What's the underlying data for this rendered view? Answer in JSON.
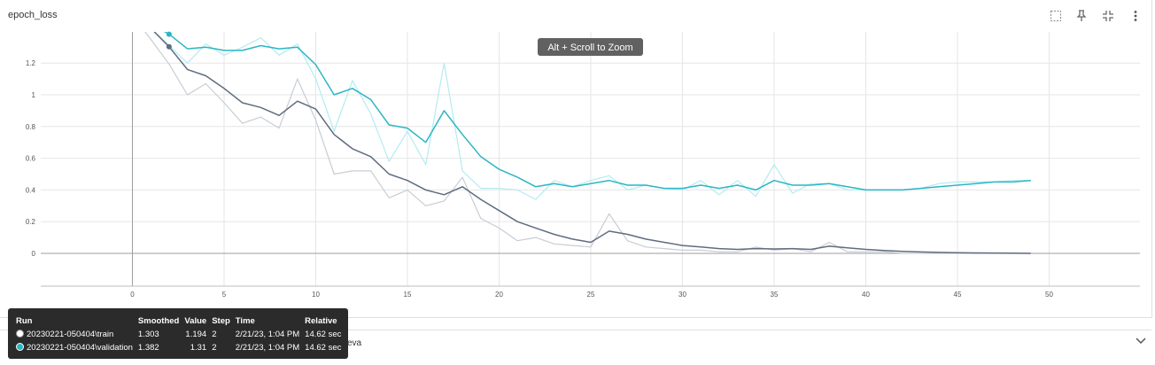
{
  "title": "epoch_loss",
  "toolbar": {
    "fullscreen_icon": "fullscreen-icon",
    "pin_icon": "pin-icon",
    "fit_icon": "fit-domain-icon",
    "more_icon": "more-vert-icon"
  },
  "zoom_hint": "Alt + Scroll to Zoom",
  "colors": {
    "train": "#5f6d80",
    "train_raw": "#c7cdd4",
    "validation": "#2bb6c4",
    "validation_raw": "#b3ebf1"
  },
  "chart_data": {
    "type": "line",
    "xlim": [
      -5,
      55
    ],
    "ylim": [
      -0.2,
      1.38
    ],
    "xticks": [
      0,
      5,
      10,
      15,
      20,
      25,
      30,
      35,
      40,
      45,
      50
    ],
    "yticks": [
      0,
      0.2,
      0.4,
      0.6,
      0.8,
      1,
      1.2
    ],
    "ytick_labels": [
      "0",
      "0.2",
      "0.4",
      "0.6",
      "0.8",
      "1",
      "1.2"
    ],
    "grid": true,
    "series": [
      {
        "name": "20230221-050404\\train (raw)",
        "x": [
          0,
          1,
          2,
          3,
          4,
          5,
          6,
          7,
          8,
          9,
          10,
          11,
          12,
          13,
          14,
          15,
          16,
          17,
          18,
          19,
          20,
          21,
          22,
          23,
          24,
          25,
          26,
          27,
          28,
          29,
          30,
          31,
          32,
          33,
          34,
          35,
          36,
          37,
          38,
          39,
          40,
          41,
          42,
          43,
          44,
          45,
          46,
          47,
          48,
          49
        ],
        "values": [
          1.5,
          1.35,
          1.194,
          1.0,
          1.07,
          0.95,
          0.82,
          0.86,
          0.79,
          1.1,
          0.84,
          0.5,
          0.52,
          0.52,
          0.35,
          0.4,
          0.3,
          0.33,
          0.48,
          0.22,
          0.16,
          0.08,
          0.1,
          0.06,
          0.05,
          0.04,
          0.25,
          0.08,
          0.04,
          0.03,
          0.02,
          0.02,
          0.01,
          0.01,
          0.04,
          0.02,
          0.03,
          0.01,
          0.07,
          0.01,
          0.01,
          0.01,
          0.0,
          0.0,
          0.0,
          0.0,
          0.0,
          0.0,
          0.0,
          0.0
        ]
      },
      {
        "name": "20230221-050404\\train",
        "x": [
          0,
          1,
          2,
          3,
          4,
          5,
          6,
          7,
          8,
          9,
          10,
          11,
          12,
          13,
          14,
          15,
          16,
          17,
          18,
          19,
          20,
          21,
          22,
          23,
          24,
          25,
          26,
          27,
          28,
          29,
          30,
          31,
          32,
          33,
          34,
          35,
          36,
          37,
          38,
          39,
          40,
          41,
          42,
          43,
          44,
          45,
          46,
          47,
          48,
          49
        ],
        "values": [
          1.55,
          1.42,
          1.303,
          1.16,
          1.12,
          1.04,
          0.95,
          0.92,
          0.87,
          0.96,
          0.91,
          0.75,
          0.66,
          0.61,
          0.5,
          0.46,
          0.4,
          0.37,
          0.42,
          0.34,
          0.27,
          0.2,
          0.16,
          0.12,
          0.09,
          0.07,
          0.14,
          0.12,
          0.09,
          0.07,
          0.05,
          0.04,
          0.03,
          0.025,
          0.03,
          0.028,
          0.03,
          0.025,
          0.045,
          0.035,
          0.025,
          0.018,
          0.013,
          0.009,
          0.006,
          0.004,
          0.003,
          0.002,
          0.001,
          0.0
        ]
      },
      {
        "name": "20230221-050404\\validation (raw)",
        "x": [
          0,
          1,
          2,
          3,
          4,
          5,
          6,
          7,
          8,
          9,
          10,
          11,
          12,
          13,
          14,
          15,
          16,
          17,
          18,
          19,
          20,
          21,
          22,
          23,
          24,
          25,
          26,
          27,
          28,
          29,
          30,
          31,
          32,
          33,
          34,
          35,
          36,
          37,
          38,
          39,
          40,
          41,
          42,
          43,
          44,
          45,
          46,
          47,
          48,
          49
        ],
        "values": [
          1.5,
          1.42,
          1.31,
          1.2,
          1.32,
          1.25,
          1.3,
          1.36,
          1.25,
          1.32,
          1.1,
          0.77,
          1.09,
          0.88,
          0.58,
          0.77,
          0.56,
          1.2,
          0.52,
          0.41,
          0.41,
          0.4,
          0.34,
          0.46,
          0.42,
          0.46,
          0.49,
          0.4,
          0.43,
          0.41,
          0.4,
          0.46,
          0.37,
          0.46,
          0.36,
          0.56,
          0.38,
          0.44,
          0.44,
          0.4,
          0.4,
          0.4,
          0.4,
          0.41,
          0.44,
          0.45,
          0.45,
          0.45,
          0.46,
          0.46
        ]
      },
      {
        "name": "20230221-050404\\validation",
        "x": [
          0,
          1,
          2,
          3,
          4,
          5,
          6,
          7,
          8,
          9,
          10,
          11,
          12,
          13,
          14,
          15,
          16,
          17,
          18,
          19,
          20,
          21,
          22,
          23,
          24,
          25,
          26,
          27,
          28,
          29,
          30,
          31,
          32,
          33,
          34,
          35,
          36,
          37,
          38,
          39,
          40,
          41,
          42,
          43,
          44,
          45,
          46,
          47,
          48,
          49
        ],
        "values": [
          1.5,
          1.45,
          1.382,
          1.29,
          1.3,
          1.28,
          1.28,
          1.31,
          1.29,
          1.3,
          1.19,
          1.0,
          1.04,
          0.97,
          0.81,
          0.79,
          0.7,
          0.9,
          0.75,
          0.61,
          0.53,
          0.48,
          0.42,
          0.44,
          0.42,
          0.44,
          0.46,
          0.43,
          0.43,
          0.41,
          0.41,
          0.43,
          0.41,
          0.43,
          0.4,
          0.46,
          0.43,
          0.43,
          0.44,
          0.42,
          0.4,
          0.4,
          0.4,
          0.41,
          0.42,
          0.43,
          0.44,
          0.45,
          0.45,
          0.46
        ]
      }
    ],
    "highlight": {
      "x": 2,
      "points": [
        {
          "series": "train",
          "value": 1.303
        },
        {
          "series": "validation",
          "value": 1.382
        }
      ]
    }
  },
  "tooltip": {
    "headers": [
      "Run",
      "Smoothed",
      "Value",
      "Step",
      "Time",
      "Relative"
    ],
    "rows": [
      {
        "run": "20230221-050404\\train",
        "smoothed": "1.303",
        "value": "1.194",
        "step": "2",
        "time": "2/21/23, 1:04 PM",
        "relative": "14.62 sec",
        "color": "#ffffff"
      },
      {
        "run": "20230221-050404\\validation",
        "smoothed": "1.382",
        "value": "1.31",
        "step": "2",
        "time": "2/21/23, 1:04 PM",
        "relative": "14.62 sec",
        "color": "#2bb6c4"
      }
    ]
  },
  "bottom_fragment": "eva",
  "expand_icon": "chevron-down-icon"
}
